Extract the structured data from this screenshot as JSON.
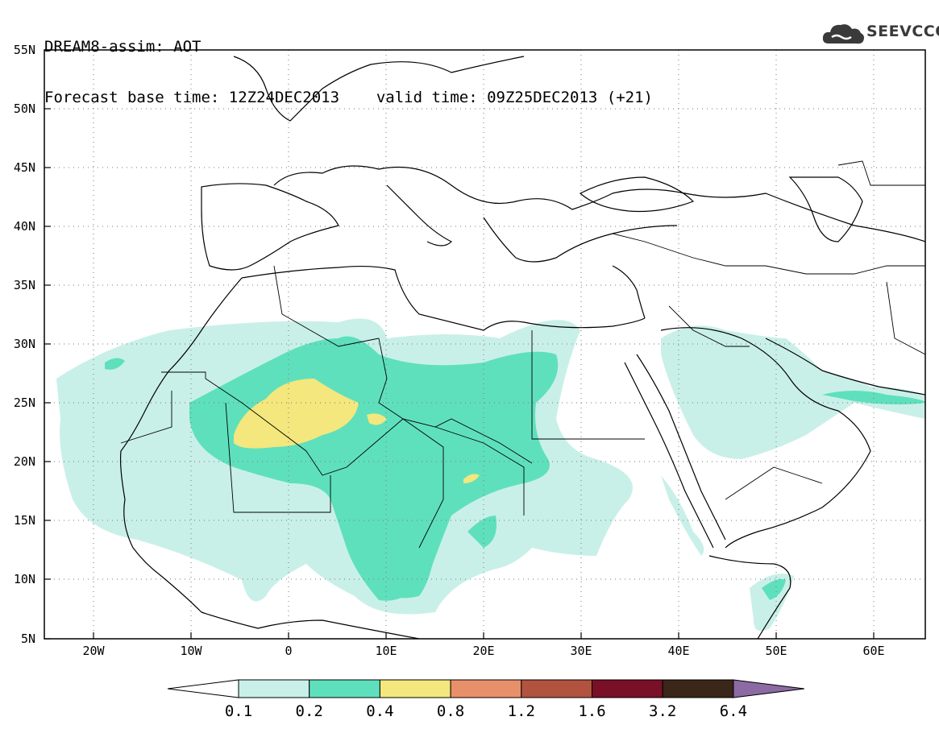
{
  "header": {
    "line1": "DREAM8-assim: AOT",
    "base_label": "Forecast base time: 12Z24DEC2013",
    "valid_label": "valid time: 09Z25DEC2013 (+21)"
  },
  "logo": {
    "text": "SEEVCCC",
    "icon": "cloud-icon"
  },
  "axes": {
    "lat_ticks": [
      "55N",
      "50N",
      "45N",
      "40N",
      "35N",
      "30N",
      "25N",
      "20N",
      "15N",
      "10N",
      "5N"
    ],
    "lon_ticks": [
      "20W",
      "10W",
      "0",
      "10E",
      "20E",
      "30E",
      "40E",
      "50E",
      "60E"
    ]
  },
  "legend": {
    "levels": [
      "0.1",
      "0.2",
      "0.4",
      "0.8",
      "1.2",
      "1.6",
      "3.2",
      "6.4"
    ],
    "colors": [
      "#ffffff",
      "#c9f0e8",
      "#5fe0bd",
      "#f3e77e",
      "#e8906a",
      "#b2533f",
      "#7a0f28",
      "#3a2719",
      "#8c6aa3"
    ]
  },
  "field_colors": {
    "low": "#c9f0e8",
    "mid": "#5fe0bd",
    "high": "#f3e77e"
  }
}
